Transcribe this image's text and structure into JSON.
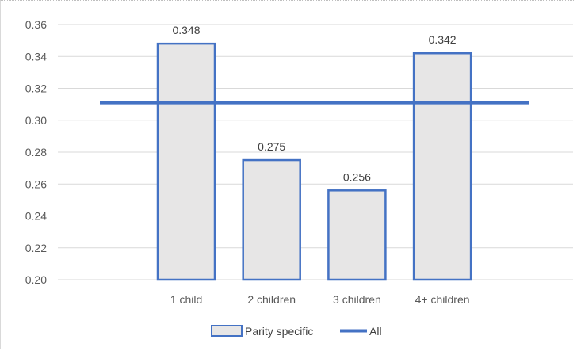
{
  "chart_data": {
    "type": "bar",
    "categories": [
      "1 child",
      "2 children",
      "3 children",
      "4+ children"
    ],
    "series": [
      {
        "name": "Parity specific",
        "type": "bar",
        "values": [
          0.348,
          0.275,
          0.256,
          0.342
        ]
      },
      {
        "name": "All",
        "type": "line",
        "value": 0.311
      }
    ],
    "data_labels": [
      "0.348",
      "0.275",
      "0.256",
      "0.342"
    ],
    "ylim": [
      0.2,
      0.36
    ],
    "yticks": [
      0.2,
      0.22,
      0.24,
      0.26,
      0.28,
      0.3,
      0.32,
      0.34,
      0.36
    ],
    "ytick_labels": [
      "0.20",
      "0.22",
      "0.24",
      "0.26",
      "0.28",
      "0.30",
      "0.32",
      "0.34",
      "0.36"
    ],
    "grid": true,
    "legend_position": "bottom",
    "colors": {
      "bar_fill": "#e7e6e6",
      "bar_edge": "#4472c4",
      "all_line": "#4472c4"
    }
  }
}
